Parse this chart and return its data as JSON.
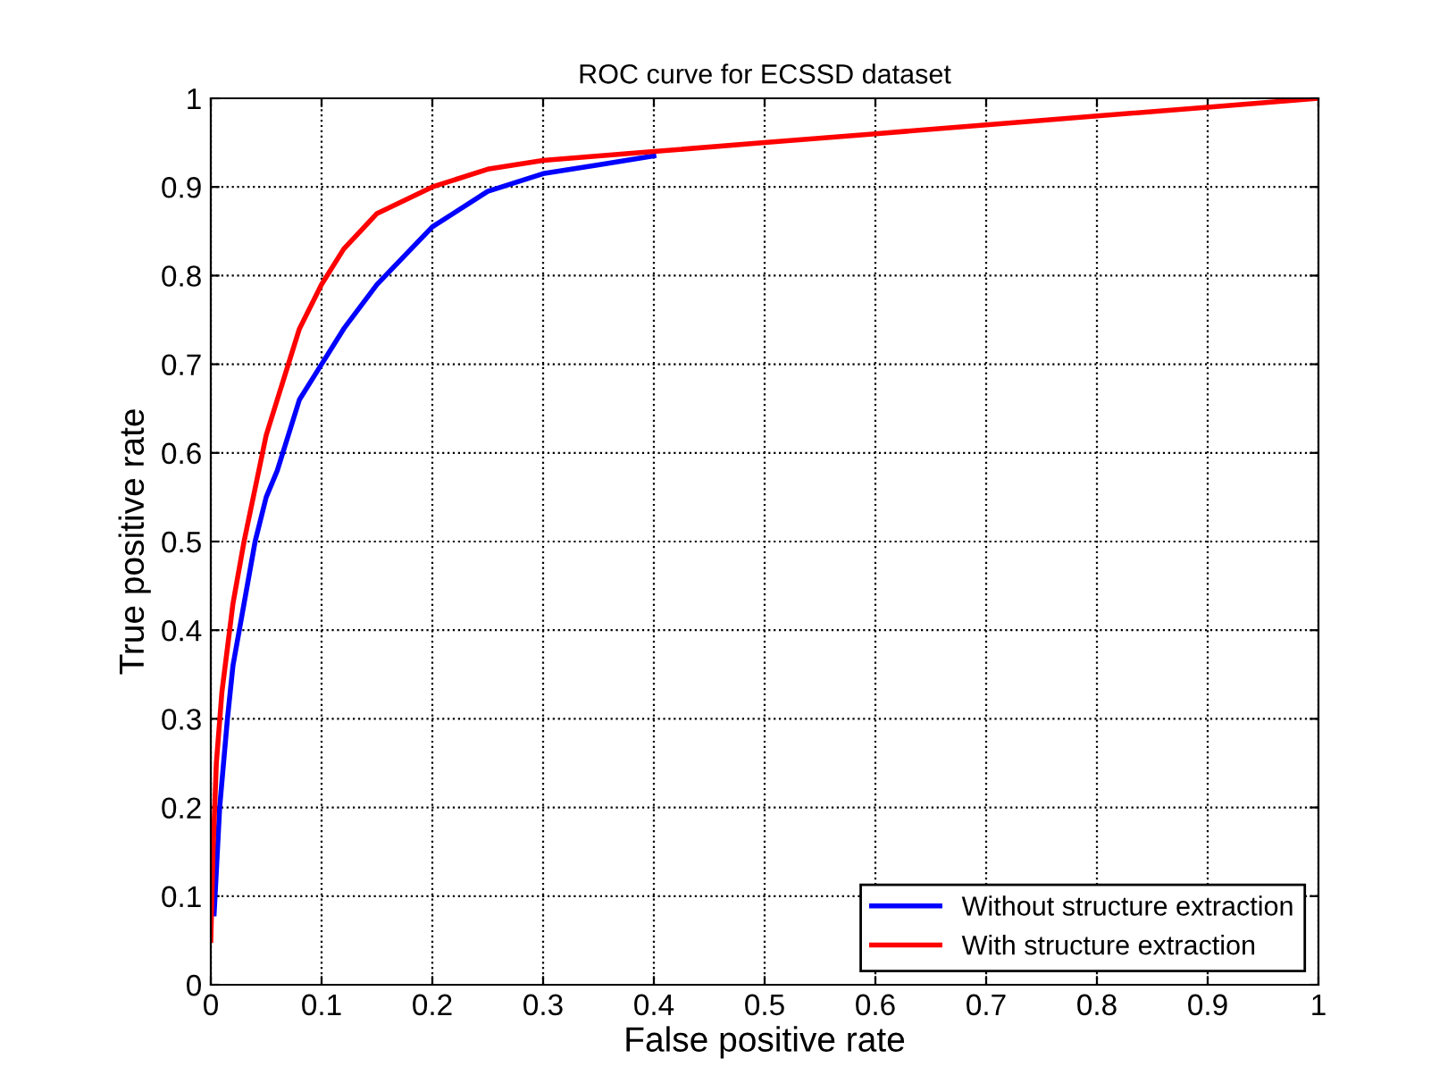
{
  "chart_data": {
    "type": "line",
    "title": "ROC curve for ECSSD dataset",
    "xlabel": "False positive rate",
    "ylabel": "True positive rate",
    "xlim": [
      0,
      1
    ],
    "ylim": [
      0,
      1
    ],
    "xticks": [
      0,
      0.1,
      0.2,
      0.3,
      0.4,
      0.5,
      0.6,
      0.7,
      0.8,
      0.9,
      1
    ],
    "yticks": [
      0,
      0.1,
      0.2,
      0.3,
      0.4,
      0.5,
      0.6,
      0.7,
      0.8,
      0.9,
      1
    ],
    "grid": true,
    "legend": "bottom right",
    "line_style": "solid",
    "series": [
      {
        "name": "Without structure extraction",
        "color": "#0000ff",
        "x": [
          0.003,
          0.008,
          0.015,
          0.02,
          0.03,
          0.04,
          0.05,
          0.06,
          0.07,
          0.08,
          0.1,
          0.12,
          0.15,
          0.2,
          0.25,
          0.3,
          0.35,
          0.4
        ],
        "values": [
          0.08,
          0.2,
          0.3,
          0.36,
          0.43,
          0.5,
          0.55,
          0.58,
          0.62,
          0.66,
          0.7,
          0.74,
          0.79,
          0.855,
          0.895,
          0.915,
          0.925,
          0.935
        ]
      },
      {
        "name": "With structure extraction",
        "color": "#ff0000",
        "x": [
          0,
          0.002,
          0.005,
          0.01,
          0.015,
          0.02,
          0.03,
          0.04,
          0.05,
          0.06,
          0.07,
          0.08,
          0.1,
          0.12,
          0.15,
          0.2,
          0.25,
          0.3,
          0.4,
          0.5,
          0.6,
          0.7,
          0.8,
          0.9,
          1
        ],
        "values": [
          0.05,
          0.15,
          0.25,
          0.33,
          0.38,
          0.43,
          0.5,
          0.56,
          0.62,
          0.66,
          0.7,
          0.74,
          0.79,
          0.83,
          0.87,
          0.9,
          0.92,
          0.93,
          0.94,
          0.95,
          0.96,
          0.97,
          0.98,
          0.99,
          1
        ]
      }
    ]
  }
}
